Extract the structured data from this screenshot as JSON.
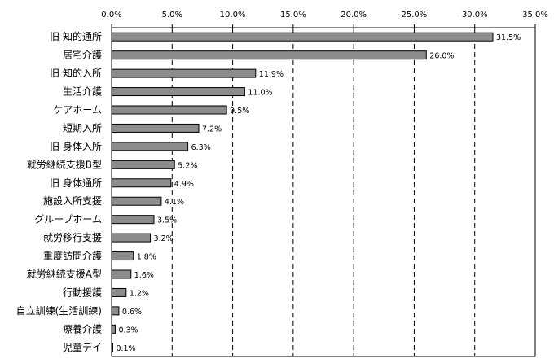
{
  "chart_data": {
    "type": "bar",
    "orientation": "horizontal",
    "categories": [
      "旧 知的通所",
      "居宅介護",
      "旧 知的入所",
      "生活介護",
      "ケアホーム",
      "短期入所",
      "旧 身体入所",
      "就労継続支援B型",
      "旧 身体通所",
      "施設入所支援",
      "グループホーム",
      "就労移行支援",
      "重度訪問介護",
      "就労継続支援A型",
      "行動援護",
      "自立訓練(生活訓練)",
      "療養介護",
      "児童デイ"
    ],
    "values": [
      31.5,
      26.0,
      11.9,
      11.0,
      9.5,
      7.2,
      6.3,
      5.2,
      4.9,
      4.1,
      3.5,
      3.2,
      1.8,
      1.6,
      1.2,
      0.6,
      0.3,
      0.1
    ],
    "data_labels": [
      "31.5%",
      "26.0%",
      "11.9%",
      "11.0%",
      "9.5%",
      "7.2%",
      "6.3%",
      "5.2%",
      "4.9%",
      "4.1%",
      "3.5%",
      "3.2%",
      "1.8%",
      "1.6%",
      "1.2%",
      "0.6%",
      "0.3%",
      "0.1%"
    ],
    "xlim": [
      0,
      35
    ],
    "x_ticks": [
      0,
      5,
      10,
      15,
      20,
      25,
      30,
      35
    ],
    "x_tick_labels": [
      "0.0%",
      "5.0%",
      "10.0%",
      "15.0%",
      "20.0%",
      "25.0%",
      "30.0%",
      "35.0%"
    ],
    "x_axis_position": "top",
    "grid": true,
    "legend": false,
    "colors": {
      "bar": "#8c8c8c",
      "bar_edge": "#000000",
      "grid": "#000000"
    }
  }
}
